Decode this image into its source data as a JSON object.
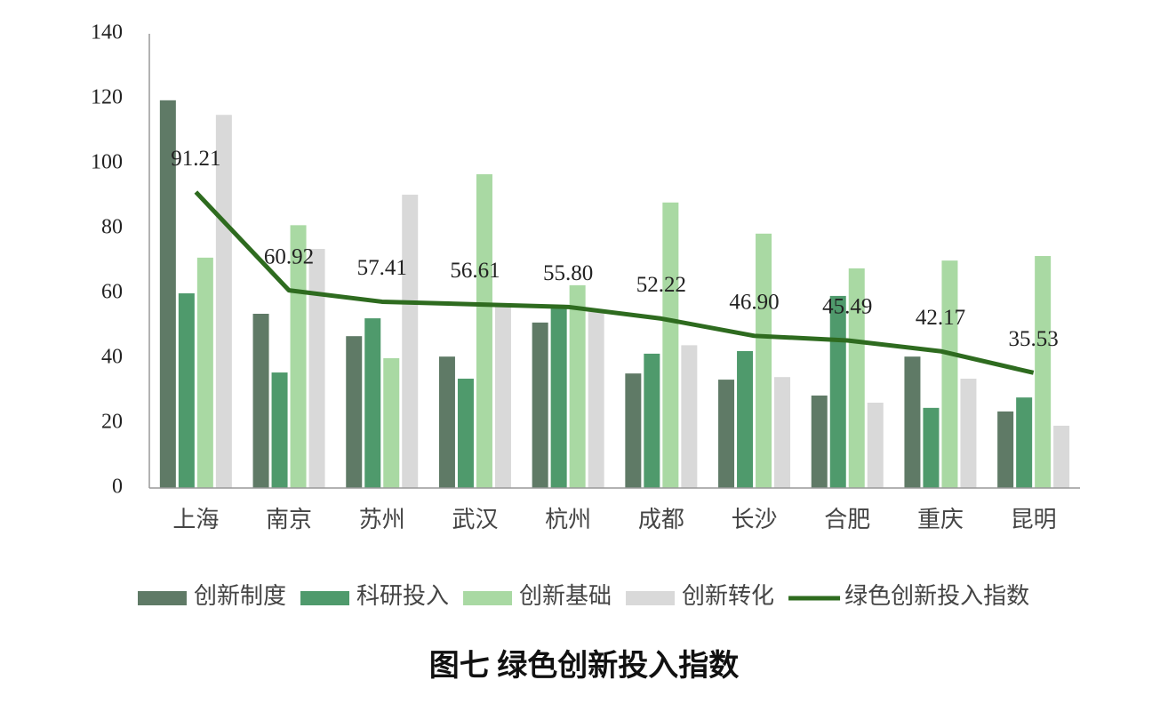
{
  "chart_data": {
    "type": "bar+line",
    "title": "图七 绿色创新投入指数",
    "categories": [
      "上海",
      "南京",
      "苏州",
      "武汉",
      "杭州",
      "成都",
      "长沙",
      "合肥",
      "重庆",
      "昆明"
    ],
    "ylim": [
      0,
      140
    ],
    "yticks": [
      0,
      20,
      40,
      60,
      80,
      100,
      120,
      140
    ],
    "series": [
      {
        "name": "创新制度",
        "type": "bar",
        "color": "#5f7a66",
        "values": [
          119.5,
          53.7,
          46.8,
          40.5,
          51,
          35.3,
          33.4,
          28.5,
          40.5,
          23.6
        ]
      },
      {
        "name": "科研投入",
        "type": "bar",
        "color": "#4f9a6c",
        "values": [
          60,
          35.6,
          52.3,
          33.7,
          56,
          41.4,
          42.2,
          59.2,
          24.7,
          27.9
        ]
      },
      {
        "name": "创新基础",
        "type": "bar",
        "color": "#a9d9a3",
        "values": [
          71,
          81,
          40,
          96.7,
          62.5,
          88,
          78.4,
          67.7,
          70.1,
          71.5
        ]
      },
      {
        "name": "创新转化",
        "type": "bar",
        "color": "#d9d9d9",
        "values": [
          115,
          73.7,
          90.4,
          56,
          55,
          44,
          34.2,
          26.3,
          33.7,
          19.2
        ]
      },
      {
        "name": "绿色创新投入指数",
        "type": "line",
        "color": "#2e6b1f",
        "values": [
          91.21,
          60.92,
          57.41,
          56.61,
          55.8,
          52.22,
          46.9,
          45.49,
          42.17,
          35.53
        ],
        "value_labels": [
          "91.21",
          "60.92",
          "57.41",
          "56.61",
          "55.80",
          "52.22",
          "46.90",
          "45.49",
          "42.17",
          "35.53"
        ]
      }
    ]
  }
}
